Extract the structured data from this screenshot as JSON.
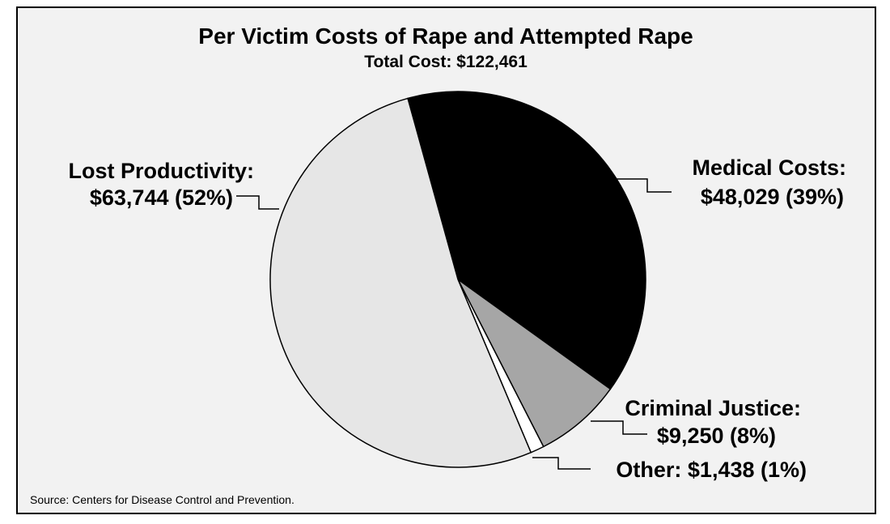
{
  "chart_data": {
    "type": "pie",
    "title": "Per Victim Costs of Rape and Attempted Rape",
    "subtitle": "Total Cost: $122,461",
    "slices": [
      {
        "name": "Medical Costs",
        "value": 48029,
        "label_line1": "Medical Costs:",
        "label_line2": "$48,029 (39%)",
        "color": "#000000"
      },
      {
        "name": "Criminal Justice",
        "value": 9250,
        "label_line1": "Criminal Justice:",
        "label_line2": "$9,250 (8%)",
        "color": "#a6a6a6"
      },
      {
        "name": "Other",
        "value": 1438,
        "label_line1": "Other: $1,438 (1%)",
        "label_line2": "",
        "color": "#ffffff"
      },
      {
        "name": "Lost Productivity",
        "value": 63744,
        "label_line1": "Lost Productivity:",
        "label_line2": "$63,744 (52%)",
        "color": "#e6e6e6"
      }
    ],
    "start_angle_deg": -15.5,
    "direction": "clockwise",
    "source": "Source: Centers for Disease Control and Prevention."
  }
}
